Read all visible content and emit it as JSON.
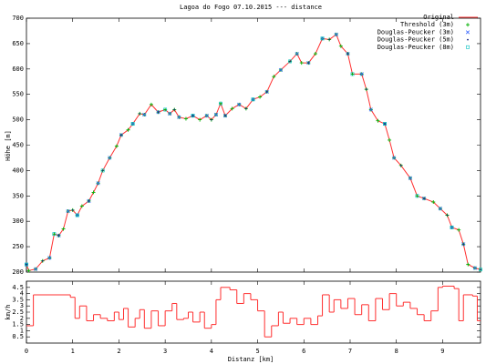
{
  "chart_data": [
    {
      "type": "line",
      "title": "Lagoa do Fogo 07.10.2015 --- distance",
      "ylabel": "Höhe [m]",
      "xlim": [
        0,
        9.82
      ],
      "ylim": [
        200,
        700
      ],
      "yticks": [
        200,
        250,
        300,
        350,
        400,
        450,
        500,
        550,
        600,
        650,
        700
      ],
      "xticks": [
        0,
        1,
        2,
        3,
        4,
        5,
        6,
        7,
        8,
        9
      ],
      "legend": "upper right",
      "series": [
        {
          "name": "Original",
          "color": "#ff3030",
          "marker": "line",
          "x": [
            0,
            0.05,
            0.2,
            0.35,
            0.5,
            0.6,
            0.7,
            0.8,
            0.9,
            1.0,
            1.1,
            1.2,
            1.35,
            1.45,
            1.55,
            1.65,
            1.8,
            1.95,
            2.05,
            2.2,
            2.3,
            2.45,
            2.55,
            2.7,
            2.85,
            3.0,
            3.1,
            3.2,
            3.3,
            3.45,
            3.6,
            3.75,
            3.9,
            4.0,
            4.1,
            4.2,
            4.3,
            4.45,
            4.6,
            4.75,
            4.9,
            5.05,
            5.2,
            5.35,
            5.5,
            5.7,
            5.85,
            5.95,
            6.1,
            6.25,
            6.4,
            6.55,
            6.7,
            6.8,
            6.95,
            7.05,
            7.25,
            7.35,
            7.45,
            7.6,
            7.75,
            7.85,
            7.95,
            8.1,
            8.3,
            8.45,
            8.6,
            8.8,
            8.95,
            9.1,
            9.2,
            9.35,
            9.45,
            9.55,
            9.7,
            9.82
          ],
          "values": [
            215,
            203,
            206,
            222,
            228,
            275,
            272,
            285,
            320,
            322,
            312,
            330,
            340,
            357,
            375,
            400,
            425,
            448,
            470,
            480,
            492,
            512,
            510,
            530,
            515,
            520,
            512,
            520,
            505,
            502,
            508,
            500,
            508,
            500,
            510,
            532,
            508,
            522,
            530,
            522,
            540,
            545,
            555,
            585,
            598,
            615,
            630,
            612,
            612,
            630,
            660,
            658,
            668,
            645,
            630,
            590,
            590,
            560,
            520,
            498,
            492,
            460,
            425,
            410,
            385,
            350,
            345,
            338,
            325,
            312,
            288,
            283,
            255,
            215,
            208,
            205
          ]
        },
        {
          "name": "Threshold (3m)",
          "color": "#00b000",
          "marker": "plus",
          "x": [
            0,
            0.05,
            0.2,
            0.35,
            0.5,
            0.6,
            0.7,
            0.8,
            0.9,
            1.0,
            1.1,
            1.2,
            1.35,
            1.45,
            1.55,
            1.65,
            1.8,
            1.95,
            2.05,
            2.2,
            2.3,
            2.45,
            2.55,
            2.7,
            2.85,
            3.0,
            3.1,
            3.2,
            3.3,
            3.45,
            3.6,
            3.75,
            3.9,
            4.0,
            4.1,
            4.2,
            4.3,
            4.45,
            4.6,
            4.75,
            4.9,
            5.05,
            5.2,
            5.35,
            5.5,
            5.7,
            5.85,
            5.95,
            6.1,
            6.25,
            6.4,
            6.55,
            6.7,
            6.8,
            6.95,
            7.05,
            7.25,
            7.35,
            7.45,
            7.6,
            7.75,
            7.85,
            7.95,
            8.1,
            8.3,
            8.45,
            8.6,
            8.8,
            8.95,
            9.1,
            9.2,
            9.35,
            9.45,
            9.55,
            9.7,
            9.82
          ],
          "values": [
            215,
            203,
            206,
            222,
            228,
            275,
            272,
            285,
            320,
            322,
            312,
            330,
            340,
            357,
            375,
            400,
            425,
            448,
            470,
            480,
            492,
            512,
            510,
            530,
            515,
            520,
            512,
            520,
            505,
            502,
            508,
            500,
            508,
            500,
            510,
            532,
            508,
            522,
            530,
            522,
            540,
            545,
            555,
            585,
            598,
            615,
            630,
            612,
            612,
            630,
            660,
            658,
            668,
            645,
            630,
            590,
            590,
            560,
            520,
            498,
            492,
            460,
            425,
            410,
            385,
            350,
            345,
            338,
            325,
            312,
            288,
            283,
            255,
            215,
            208,
            205
          ]
        },
        {
          "name": "Douglas-Peucker (3m)",
          "color": "#3060ff",
          "marker": "cross",
          "x": [
            0,
            0.2,
            0.5,
            0.7,
            0.9,
            1.1,
            1.35,
            1.55,
            1.8,
            2.05,
            2.3,
            2.55,
            2.85,
            3.1,
            3.3,
            3.6,
            3.9,
            4.1,
            4.3,
            4.6,
            4.9,
            5.2,
            5.5,
            5.85,
            6.1,
            6.4,
            6.7,
            6.95,
            7.25,
            7.45,
            7.75,
            7.95,
            8.3,
            8.6,
            8.95,
            9.2,
            9.45,
            9.7
          ],
          "values": [
            215,
            206,
            228,
            272,
            320,
            312,
            340,
            375,
            425,
            470,
            492,
            510,
            515,
            512,
            505,
            508,
            508,
            510,
            508,
            530,
            540,
            555,
            598,
            630,
            612,
            660,
            668,
            630,
            590,
            520,
            492,
            425,
            385,
            345,
            325,
            288,
            255,
            208
          ]
        },
        {
          "name": "Douglas-Peucker (5m)",
          "color": "#102080",
          "marker": "dot",
          "x": [
            0,
            0.35,
            0.7,
            1.0,
            1.35,
            1.65,
            2.05,
            2.45,
            2.85,
            3.2,
            3.6,
            4.0,
            4.3,
            4.75,
            5.2,
            5.7,
            6.1,
            6.55,
            6.95,
            7.35,
            7.75,
            8.1,
            8.6,
            9.1,
            9.45,
            9.82
          ],
          "values": [
            215,
            222,
            272,
            322,
            340,
            400,
            470,
            512,
            515,
            520,
            508,
            500,
            508,
            522,
            555,
            615,
            612,
            658,
            630,
            560,
            492,
            410,
            345,
            312,
            255,
            205
          ]
        },
        {
          "name": "Douglas-Peucker (8m)",
          "color": "#00c0c0",
          "marker": "square",
          "x": [
            0,
            0.6,
            1.1,
            1.65,
            2.3,
            3.0,
            3.6,
            4.2,
            4.9,
            5.7,
            6.4,
            7.05,
            7.75,
            8.45,
            9.2,
            9.82
          ],
          "values": [
            215,
            275,
            312,
            400,
            492,
            520,
            508,
            532,
            540,
            615,
            660,
            590,
            492,
            350,
            288,
            205
          ]
        }
      ]
    },
    {
      "type": "step",
      "ylabel": "km/h",
      "xlabel": "Distanz [km]",
      "color": "#ff3030",
      "xlim": [
        0,
        9.82
      ],
      "ylim": [
        0,
        5
      ],
      "yticks": [
        0.5,
        1,
        1.5,
        2,
        2.5,
        3,
        3.5,
        4,
        4.5
      ],
      "xticks": [
        0,
        1,
        2,
        3,
        4,
        5,
        6,
        7,
        8,
        9
      ],
      "x": [
        0,
        0.15,
        0.95,
        1.05,
        1.15,
        1.3,
        1.45,
        1.6,
        1.75,
        1.9,
        2.0,
        2.1,
        2.2,
        2.35,
        2.45,
        2.55,
        2.7,
        2.85,
        3.0,
        3.15,
        3.25,
        3.4,
        3.5,
        3.6,
        3.75,
        3.85,
        4.0,
        4.1,
        4.2,
        4.4,
        4.55,
        4.7,
        4.85,
        5.0,
        5.15,
        5.3,
        5.45,
        5.55,
        5.7,
        5.85,
        6.0,
        6.15,
        6.3,
        6.4,
        6.55,
        6.65,
        6.8,
        6.95,
        7.1,
        7.25,
        7.4,
        7.55,
        7.7,
        7.85,
        8.0,
        8.15,
        8.3,
        8.45,
        8.6,
        8.75,
        8.9,
        9.0,
        9.25,
        9.35,
        9.45,
        9.65,
        9.75
      ],
      "values": [
        1.4,
        3.9,
        3.7,
        2.0,
        3.0,
        1.8,
        2.3,
        2.0,
        1.8,
        2.5,
        1.9,
        2.8,
        1.3,
        2.0,
        2.7,
        1.2,
        2.6,
        1.4,
        2.6,
        3.2,
        1.9,
        2.0,
        2.5,
        1.7,
        2.5,
        1.2,
        1.5,
        3.5,
        4.5,
        4.3,
        3.2,
        4.0,
        3.5,
        2.6,
        0.5,
        1.4,
        2.5,
        1.6,
        2.0,
        1.5,
        2.0,
        1.5,
        2.2,
        3.9,
        2.5,
        3.5,
        2.8,
        3.6,
        2.3,
        3.1,
        1.8,
        3.6,
        2.7,
        4.0,
        3.0,
        3.3,
        2.8,
        2.3,
        1.8,
        2.6,
        4.5,
        4.6,
        4.4,
        1.8,
        3.9,
        3.8,
        1.8
      ]
    }
  ]
}
